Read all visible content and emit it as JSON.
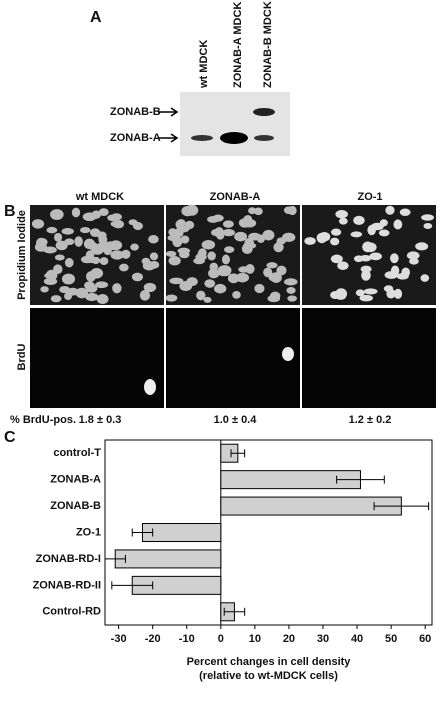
{
  "panel_a": {
    "letter": "A",
    "lanes": [
      "wt MDCK",
      "ZONAB-A MDCK",
      "ZONAB-B MDCK"
    ],
    "bands": [
      "ZONAB-B",
      "ZONAB-A"
    ]
  },
  "panel_b": {
    "letter": "B",
    "columns": [
      "wt MDCK",
      "ZONAB-A",
      "ZO-1"
    ],
    "rows": [
      "Propidium Iodide",
      "BrdU"
    ],
    "footer_label": "% BrdU-pos.",
    "footer_values": [
      "1.8 ± 0.3",
      "1.0 ± 0.4",
      "1.2 ± 0.2"
    ]
  },
  "chart_data": {
    "type": "bar",
    "orientation": "horizontal",
    "letter": "C",
    "categories": [
      "control-T",
      "ZONAB-A",
      "ZONAB-B",
      "ZO-1",
      "ZONAB-RD-I",
      "ZONAB-RD-II",
      "Control-RD"
    ],
    "values": [
      5,
      41,
      53,
      -23,
      -31,
      -26,
      4
    ],
    "errors": [
      2,
      7,
      8,
      3,
      3,
      6,
      3
    ],
    "color": "#d0d0d0",
    "xlim": [
      -34,
      62
    ],
    "xticks": [
      -30,
      -20,
      -10,
      0,
      10,
      20,
      30,
      40,
      50,
      60
    ],
    "xlabel": "Percent changes in cell density",
    "xlabel_note": "(relative to wt-MDCK cells)"
  }
}
